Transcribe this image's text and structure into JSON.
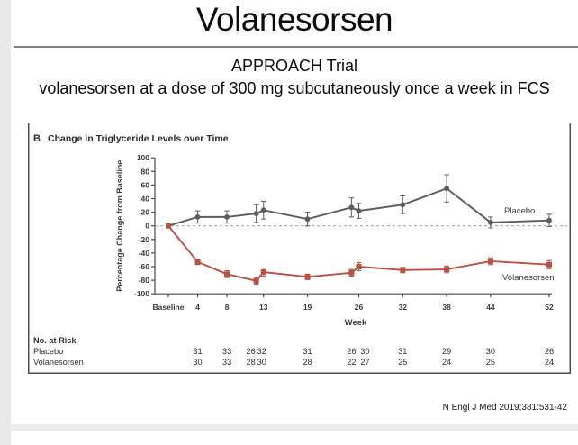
{
  "slide": {
    "title": "Volanesorsen",
    "subtitle1": "APPROACH Trial",
    "subtitle2": "volanesorsen at a dose of 300 mg subcutaneously once a week in FCS",
    "citation": "N Engl J Med 2019;381:531-42"
  },
  "chart_data": {
    "type": "line",
    "panel_label": "B",
    "panel_title": "Change in Triglyceride Levels over Time",
    "ylabel": "Percentage Change from Baseline",
    "xlabel": "Week",
    "ylim": [
      -100,
      100
    ],
    "yticks": [
      100,
      80,
      60,
      40,
      20,
      0,
      -20,
      -40,
      -60,
      -80,
      -100
    ],
    "xticks": [
      {
        "week": 0,
        "label": "Baseline"
      },
      {
        "week": 4,
        "label": "4"
      },
      {
        "week": 8,
        "label": "8"
      },
      {
        "week": 13,
        "label": "13"
      },
      {
        "week": 19,
        "label": "19"
      },
      {
        "week": 26,
        "label": "26"
      },
      {
        "week": 32,
        "label": "32"
      },
      {
        "week": 38,
        "label": "38"
      },
      {
        "week": 44,
        "label": "44"
      },
      {
        "week": 52,
        "label": "52"
      }
    ],
    "x_weeks": [
      0,
      4,
      8,
      12,
      13,
      19,
      25,
      26,
      32,
      38,
      44,
      52
    ],
    "zero_reference_line": true,
    "legend_position": "inline-right",
    "series": [
      {
        "name": "Placebo",
        "color": "#5c5c5c",
        "marker": "circle",
        "values": [
          0,
          13,
          13,
          18,
          23,
          10,
          27,
          22,
          31,
          55,
          5,
          8
        ],
        "errors": [
          0,
          9,
          9,
          13,
          13,
          10,
          14,
          11,
          13,
          20,
          8,
          9
        ]
      },
      {
        "name": "Volanesorsen",
        "color": "#b95041",
        "marker": "square",
        "values": [
          0,
          -53,
          -71,
          -81,
          -68,
          -75,
          -69,
          -60,
          -65,
          -64,
          -52,
          -57
        ],
        "errors": [
          0,
          4,
          5,
          5,
          6,
          4,
          5,
          6,
          4,
          5,
          5,
          6
        ]
      }
    ],
    "at_risk": {
      "header": "No. at Risk",
      "col_weeks": [
        4,
        8,
        12,
        13,
        19,
        25,
        26,
        32,
        38,
        44,
        52
      ],
      "rows": [
        {
          "name": "Placebo",
          "values": [
            31,
            33,
            26,
            32,
            31,
            26,
            30,
            31,
            29,
            30,
            26
          ]
        },
        {
          "name": "Volanesorsen",
          "values": [
            30,
            33,
            28,
            30,
            28,
            22,
            27,
            25,
            24,
            25,
            24
          ]
        }
      ]
    }
  }
}
